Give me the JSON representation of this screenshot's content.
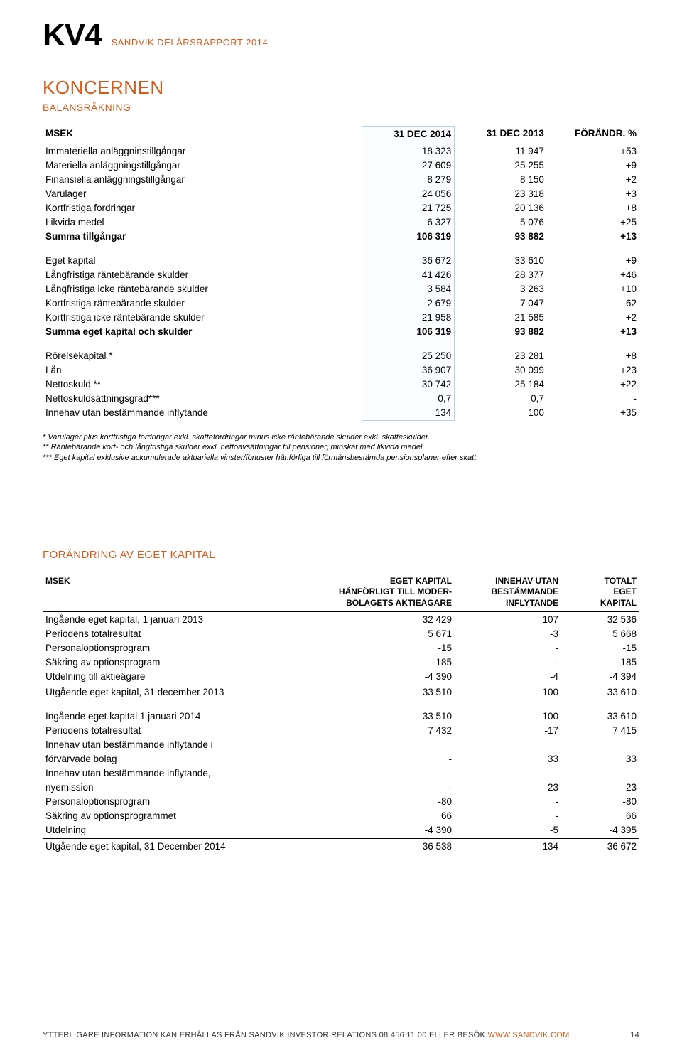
{
  "header": {
    "kv": "KV4",
    "subtitle": "SANDVIK DELÅRSRAPPORT 2014"
  },
  "section1": {
    "title": "KONCERNEN",
    "subtitle": "BALANSRÄKNING",
    "headers": {
      "c0": "MSEK",
      "c1": "31 DEC 2014",
      "c2": "31 DEC 2013",
      "c3": "FÖRÄNDR. %"
    },
    "rows_a": [
      {
        "label": "Immateriella anläggninstillgångar",
        "v1": "18 323",
        "v2": "11 947",
        "v3": "+53"
      },
      {
        "label": "Materiella anläggningstillgångar",
        "v1": "27 609",
        "v2": "25 255",
        "v3": "+9"
      },
      {
        "label": "Finansiella anläggningstillgångar",
        "v1": "8 279",
        "v2": "8 150",
        "v3": "+2"
      },
      {
        "label": "Varulager",
        "v1": "24 056",
        "v2": "23 318",
        "v3": "+3"
      },
      {
        "label": "Kortfristiga fordringar",
        "v1": "21 725",
        "v2": "20 136",
        "v3": "+8"
      },
      {
        "label": "Likvida medel",
        "v1": "6 327",
        "v2": "5 076",
        "v3": "+25"
      }
    ],
    "sum_a": {
      "label": "Summa tillgångar",
      "v1": "106 319",
      "v2": "93 882",
      "v3": "+13"
    },
    "rows_b": [
      {
        "label": "Eget kapital",
        "v1": "36 672",
        "v2": "33 610",
        "v3": "+9"
      },
      {
        "label": "Långfristiga räntebärande skulder",
        "v1": "41 426",
        "v2": "28 377",
        "v3": "+46"
      },
      {
        "label": "Långfristiga icke räntebärande skulder",
        "v1": "3 584",
        "v2": "3 263",
        "v3": "+10"
      },
      {
        "label": "Kortfristiga räntebärande skulder",
        "v1": "2 679",
        "v2": "7 047",
        "v3": "-62"
      },
      {
        "label": "Kortfristiga icke räntebärande skulder",
        "v1": "21 958",
        "v2": "21 585",
        "v3": "+2"
      }
    ],
    "sum_b": {
      "label": "Summa eget kapital och skulder",
      "v1": "106 319",
      "v2": "93 882",
      "v3": "+13"
    },
    "rows_c": [
      {
        "label": "Rörelsekapital *",
        "v1": "25 250",
        "v2": "23 281",
        "v3": "+8"
      },
      {
        "label": "Lån",
        "v1": "36 907",
        "v2": "30 099",
        "v3": "+23"
      },
      {
        "label": "Nettoskuld **",
        "v1": "30 742",
        "v2": "25 184",
        "v3": "+22"
      },
      {
        "label": "Nettoskuldsättningsgrad***",
        "v1": "0,7",
        "v2": "0,7",
        "v3": "-"
      },
      {
        "label": "Innehav utan bestämmande inflytande",
        "v1": "134",
        "v2": "100",
        "v3": "+35"
      }
    ],
    "footnotes": [
      "*    Varulager plus kortfristiga fordringar exkl. skattefordringar minus icke räntebärande skulder exkl. skatteskulder.",
      "**   Räntebärande kort- och långfristiga skulder exkl. nettoavsättningar till pensioner, minskat med likvida medel.",
      "*** Eget kapital exklusive ackumulerade aktuariella vinster/förluster hänförliga till förmånsbestämda pensionsplaner efter skatt."
    ]
  },
  "section2": {
    "title": "FÖRÄNDRING AV EGET KAPITAL",
    "headers": {
      "c0": "MSEK",
      "c1a": "EGET KAPITAL",
      "c1b": "HÄNFÖRLIGT TILL MODER-",
      "c1c": "BOLAGETS AKTIEÄGARE",
      "c2a": "INNEHAV UTAN",
      "c2b": "BESTÄMMANDE",
      "c2c": "INFLYTANDE",
      "c3a": "TOTALT",
      "c3b": "EGET",
      "c3c": "KAPITAL"
    },
    "rows_a": [
      {
        "label": "Ingående eget kapital, 1 januari 2013",
        "v1": "32 429",
        "v2": "107",
        "v3": "32 536"
      },
      {
        "label": "Periodens totalresultat",
        "v1": "5 671",
        "v2": "-3",
        "v3": "5 668"
      },
      {
        "label": "Personaloptionsprogram",
        "v1": "-15",
        "v2": "-",
        "v3": "-15"
      },
      {
        "label": "Säkring av optionsprogram",
        "v1": "-185",
        "v2": "-",
        "v3": "-185"
      },
      {
        "label": "Utdelning till aktieägare",
        "v1": "-4 390",
        "v2": "-4",
        "v3": "-4 394"
      }
    ],
    "sum_a": {
      "label": "Utgående eget kapital, 31 december 2013",
      "v1": "33 510",
      "v2": "100",
      "v3": "33 610"
    },
    "rows_b": [
      {
        "label": "Ingående eget kapital 1 januari 2014",
        "v1": "33 510",
        "v2": "100",
        "v3": "33 610"
      },
      {
        "label": "Periodens totalresultat",
        "v1": "7 432",
        "v2": "-17",
        "v3": "7 415"
      },
      {
        "label": "Innehav utan bestämmande inflytande i",
        "v1": "",
        "v2": "",
        "v3": ""
      },
      {
        "label": "förvärvade bolag",
        "v1": "-",
        "v2": "33",
        "v3": "33"
      },
      {
        "label": "Innehav utan bestämmande inflytande,",
        "v1": "",
        "v2": "",
        "v3": ""
      },
      {
        "label": "nyemission",
        "v1": "-",
        "v2": "23",
        "v3": "23"
      },
      {
        "label": "Personaloptionsprogram",
        "v1": "-80",
        "v2": "-",
        "v3": "-80"
      },
      {
        "label": "Säkring av optionsprogrammet",
        "v1": "66",
        "v2": "-",
        "v3": "66"
      },
      {
        "label": "Utdelning",
        "v1": "-4 390",
        "v2": "-5",
        "v3": "-4 395"
      }
    ],
    "sum_b": {
      "label": "Utgående eget kapital, 31 December 2014",
      "v1": "36 538",
      "v2": "134",
      "v3": "36 672"
    }
  },
  "footer": {
    "text": "YTTERLIGARE INFORMATION KAN ERHÅLLAS FRÅN SANDVIK INVESTOR RELATIONS 08 456 11 00 ELLER BESÖK ",
    "link": "WWW.SANDVIK.COM",
    "page": "14"
  }
}
